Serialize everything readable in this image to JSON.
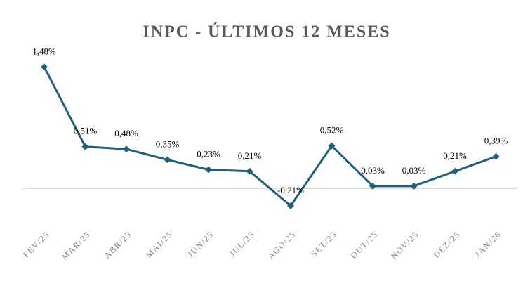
{
  "chart_data": {
    "type": "line",
    "title": "INPC - ÚLTIMOS 12 MESES",
    "categories": [
      "FEV/25",
      "MAR/25",
      "ABR/25",
      "MAI/25",
      "JUN/25",
      "JUL/25",
      "AGO/25",
      "SET/25",
      "OUT/25",
      "NOV/25",
      "DEZ/25",
      "JAN/26"
    ],
    "values": [
      1.48,
      0.51,
      0.48,
      0.35,
      0.23,
      0.21,
      -0.21,
      0.52,
      0.03,
      0.03,
      0.21,
      0.39
    ],
    "value_labels": [
      "1,48%",
      "0,51%",
      "0,48%",
      "0,35%",
      "0,23%",
      "0,21%",
      "-0,21%",
      "0,52%",
      "0,03%",
      "0,03%",
      "0,21%",
      "0,39%"
    ],
    "color": "#1f5f7a",
    "ylim": [
      -0.5,
      1.6
    ]
  }
}
